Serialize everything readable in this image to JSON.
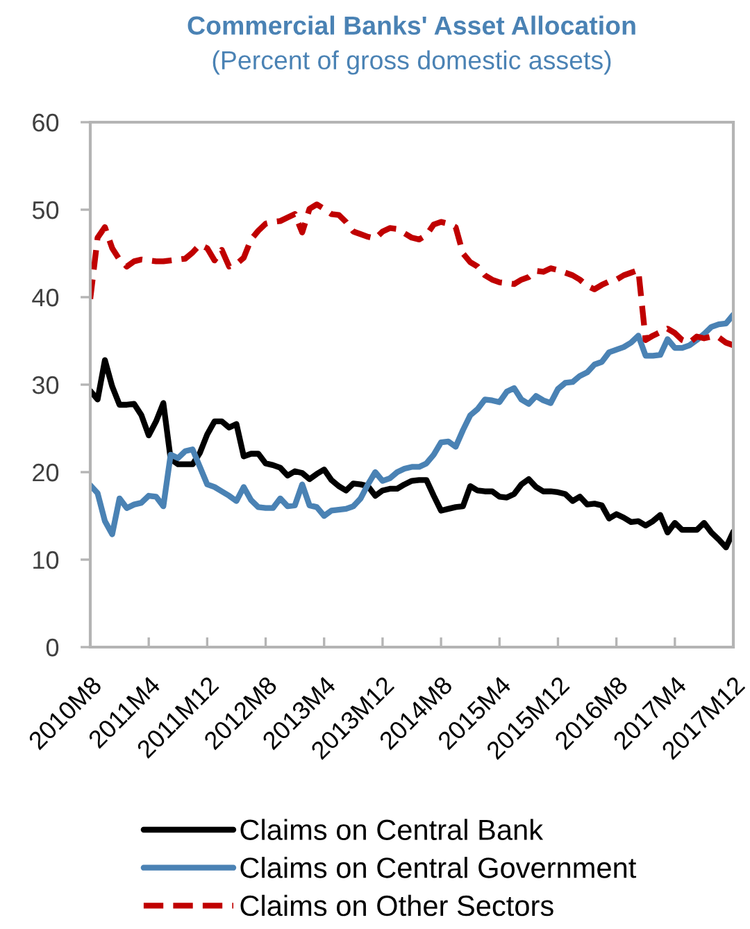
{
  "chart_data": {
    "type": "line",
    "title": "Commercial Banks' Asset Allocation",
    "subtitle": "(Percent of gross domestic assets)",
    "categories": [
      "2010M8",
      null,
      null,
      null,
      null,
      null,
      null,
      null,
      "2011M4",
      null,
      null,
      null,
      null,
      null,
      null,
      null,
      "2011M12",
      null,
      null,
      null,
      null,
      null,
      null,
      null,
      "2012M8",
      null,
      null,
      null,
      null,
      null,
      null,
      null,
      "2013M4",
      null,
      null,
      null,
      null,
      null,
      null,
      null,
      "2013M12",
      null,
      null,
      null,
      null,
      null,
      null,
      null,
      "2014M8",
      null,
      null,
      null,
      null,
      null,
      null,
      null,
      "2015M4",
      null,
      null,
      null,
      null,
      null,
      null,
      null,
      "2015M12",
      null,
      null,
      null,
      null,
      null,
      null,
      null,
      "2016M8",
      null,
      null,
      null,
      null,
      null,
      null,
      null,
      "2017M4",
      null,
      null,
      null,
      null,
      null,
      null,
      null,
      "2017M12"
    ],
    "series": [
      {
        "name": "Claims on Central Bank",
        "color": "#000000",
        "values": [
          29.3,
          28.3,
          32.8,
          29.8,
          27.7,
          27.7,
          27.8,
          26.5,
          24.2,
          25.8,
          27.9,
          21.5,
          20.9,
          20.9,
          20.9,
          22.2,
          24.3,
          25.8,
          25.8,
          25.1,
          25.5,
          21.8,
          22.1,
          22.1,
          21.0,
          20.8,
          20.5,
          19.6,
          20.1,
          19.9,
          19.2,
          19.8,
          20.3,
          19.1,
          18.4,
          17.9,
          18.7,
          18.6,
          18.4,
          17.3,
          17.9,
          18.1,
          18.1,
          18.6,
          19.0,
          19.1,
          19.1,
          17.3,
          15.6,
          15.8,
          16.0,
          16.1,
          18.4,
          17.9,
          17.8,
          17.8,
          17.2,
          17.1,
          17.5,
          18.6,
          19.2,
          18.3,
          17.8,
          17.8,
          17.7,
          17.5,
          16.7,
          17.2,
          16.3,
          16.4,
          16.2,
          14.7,
          15.2,
          14.8,
          14.3,
          14.4,
          13.9,
          14.4,
          15.1,
          13.1,
          14.2,
          13.4,
          13.4,
          13.4,
          14.2,
          13.1,
          12.3,
          11.4,
          13.2
        ]
      },
      {
        "name": "Claims on Central Government",
        "color": "#4a82b4",
        "values": [
          18.5,
          17.6,
          14.4,
          12.9,
          17.0,
          15.9,
          16.3,
          16.5,
          17.3,
          17.2,
          16.1,
          22.0,
          21.6,
          22.4,
          22.6,
          20.6,
          18.6,
          18.3,
          17.8,
          17.3,
          16.7,
          18.3,
          16.8,
          16.0,
          15.9,
          15.9,
          17.0,
          16.1,
          16.2,
          18.6,
          16.2,
          16.0,
          15.0,
          15.6,
          15.7,
          15.8,
          16.1,
          17.0,
          18.6,
          20.0,
          19.0,
          19.3,
          20.0,
          20.4,
          20.6,
          20.6,
          21.0,
          22.0,
          23.4,
          23.5,
          22.9,
          24.8,
          26.5,
          27.2,
          28.3,
          28.2,
          28.0,
          29.2,
          29.6,
          28.3,
          27.8,
          28.7,
          28.2,
          27.9,
          29.5,
          30.2,
          30.3,
          31.0,
          31.4,
          32.3,
          32.6,
          33.7,
          34.0,
          34.3,
          34.8,
          35.6,
          33.3,
          33.3,
          33.4,
          35.2,
          34.2,
          34.2,
          34.5,
          35.1,
          35.8,
          36.6,
          36.9,
          37.0,
          38.0
        ]
      },
      {
        "name": "Claims on Other Sectors",
        "color": "#c00000",
        "line_style": "dashed",
        "values": [
          39.8,
          46.8,
          48.0,
          45.6,
          44.3,
          43.5,
          44.1,
          44.3,
          44.2,
          44.1,
          44.1,
          44.2,
          44.3,
          44.4,
          45.1,
          46.0,
          45.6,
          44.2,
          45.4,
          43.5,
          43.8,
          44.5,
          46.6,
          47.6,
          48.4,
          48.6,
          48.7,
          49.1,
          49.5,
          47.4,
          50.1,
          50.6,
          50.1,
          49.5,
          49.4,
          48.6,
          47.5,
          47.2,
          46.9,
          46.7,
          47.5,
          47.9,
          47.8,
          47.3,
          46.8,
          46.6,
          47.1,
          48.3,
          48.6,
          48.4,
          48.0,
          45.0,
          44.0,
          43.5,
          42.5,
          42.0,
          41.7,
          41.6,
          41.5,
          42.0,
          42.3,
          43.0,
          42.9,
          43.3,
          43.1,
          42.8,
          42.5,
          42.0,
          41.3,
          40.9,
          41.4,
          41.8,
          42.0,
          42.5,
          42.8,
          43.1,
          35.1,
          35.6,
          36.0,
          36.4,
          35.9,
          35.1,
          34.8,
          35.5,
          35.3,
          35.5,
          35.4,
          34.8,
          34.5
        ]
      }
    ],
    "ylim": [
      0,
      60
    ],
    "yticks": [
      0,
      10,
      20,
      30,
      40,
      50,
      60
    ],
    "legend": "bottom",
    "line_style": "solid"
  }
}
